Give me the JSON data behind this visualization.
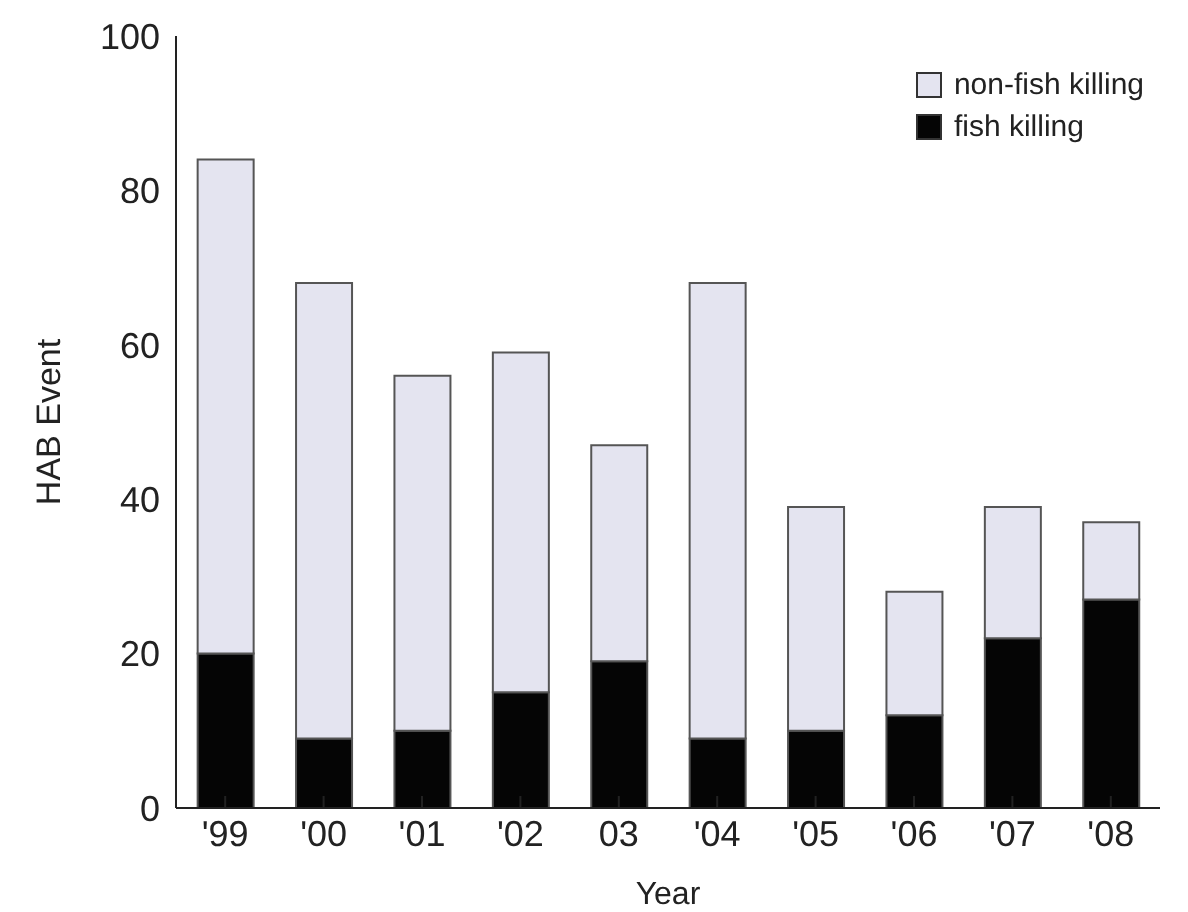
{
  "chart_data": {
    "type": "bar",
    "stacked": true,
    "xlabel": "Year",
    "ylabel": "HAB Event",
    "categories": [
      "'99",
      "'00",
      "'01",
      "'02",
      "03",
      "'04",
      "'05",
      "'06",
      "'07",
      "'08"
    ],
    "series": [
      {
        "name": "fish killing",
        "color": "#050505",
        "values": [
          20,
          9,
          10,
          15,
          19,
          9,
          10,
          12,
          22,
          27
        ]
      },
      {
        "name": "non-fish killing",
        "color": "#e4e4f0",
        "values": [
          64,
          59,
          46,
          44,
          28,
          59,
          29,
          16,
          17,
          10
        ]
      }
    ],
    "ylim": [
      0,
      100
    ],
    "yticks": [
      0,
      20,
      40,
      60,
      80,
      100
    ],
    "legend": "top right"
  }
}
